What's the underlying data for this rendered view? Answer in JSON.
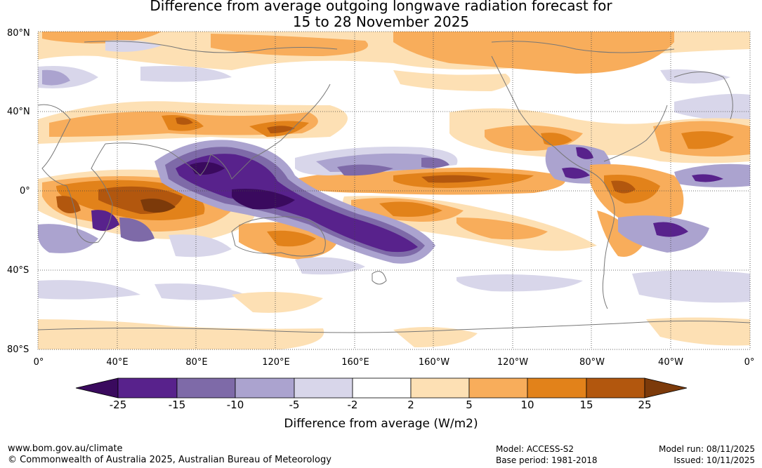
{
  "title": {
    "line1": "Difference from average outgoing longwave radiation forecast for",
    "line2": "15 to 28 November 2025"
  },
  "map": {
    "lat_labels": [
      "80°N",
      "40°N",
      "0°",
      "40°S",
      "80°S"
    ],
    "lon_labels": [
      "0°",
      "40°E",
      "80°E",
      "120°E",
      "160°E",
      "160°W",
      "120°W",
      "80°W",
      "40°W",
      "0°"
    ]
  },
  "colorbar": {
    "label": "Difference from average (W/m2)",
    "ticks": [
      "-25",
      "-15",
      "-10",
      "-5",
      "-2",
      "2",
      "5",
      "10",
      "15",
      "25"
    ],
    "colors": [
      "#3a0a5e",
      "#58228c",
      "#7e6aa8",
      "#aba3cf",
      "#d8d6ea",
      "#ffffff",
      "#fde0b4",
      "#f8ad5b",
      "#e2821a",
      "#b2570e",
      "#7c3a0a"
    ]
  },
  "footer": {
    "website": "www.bom.gov.au/climate",
    "copyright": "© Commonwealth of Australia 2025, Australian Bureau of Meteorology",
    "model": "Model: ACCESS-S2",
    "base_period": "Base period: 1981-2018",
    "model_run": "Model run: 08/11/2025",
    "issued": "Issued: 10/11/2025"
  }
}
